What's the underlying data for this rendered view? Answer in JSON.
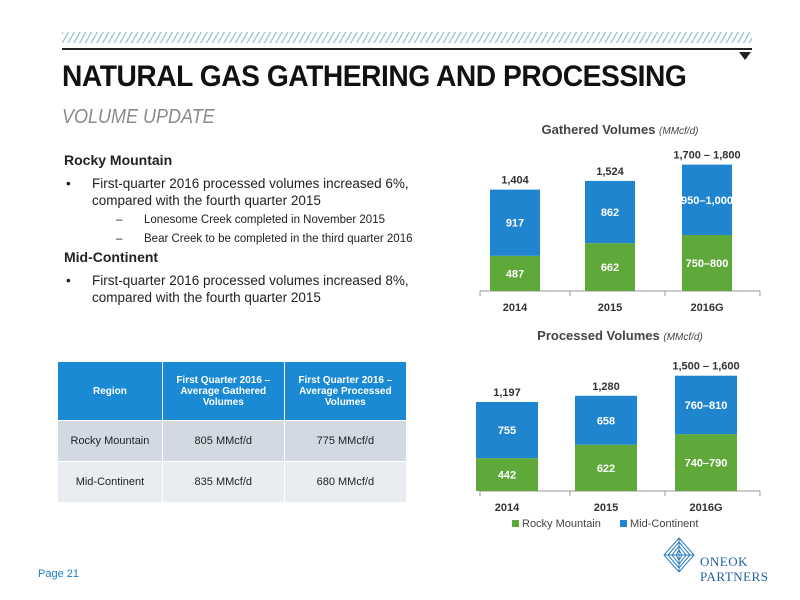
{
  "header": {
    "title": "NATURAL GAS GATHERING AND PROCESSING",
    "subtitle": "VOLUME UPDATE"
  },
  "content": {
    "rocky": {
      "heading": "Rocky Mountain",
      "bullet": "First-quarter 2016 processed volumes increased 6%, compared with the fourth quarter 2015",
      "subs": [
        "Lonesome Creek completed in November 2015",
        "Bear Creek to be completed in the third quarter 2016"
      ]
    },
    "mid": {
      "heading": "Mid-Continent",
      "bullet": "First-quarter 2016 processed volumes increased 8%, compared with the fourth quarter 2015"
    }
  },
  "table": {
    "headers": [
      "Region",
      "First Quarter 2016 – Average Gathered Volumes",
      "First Quarter 2016 – Average Processed Volumes"
    ],
    "rows": [
      [
        "Rocky Mountain",
        "805 MMcf/d",
        "775 MMcf/d"
      ],
      [
        "Mid-Continent",
        "835 MMcf/d",
        "680 MMcf/d"
      ]
    ]
  },
  "footer": {
    "page": "Page 21"
  },
  "logo": {
    "line1": "ONEOK",
    "line2": "PARTNERS"
  },
  "colors": {
    "rocky": "#5fa83a",
    "mid": "#1f85cf",
    "accent": "#1a8ad4"
  },
  "legend": [
    "Rocky Mountain",
    "Mid-Continent"
  ],
  "chart_data": [
    {
      "type": "bar",
      "stacked": true,
      "title": "Gathered Volumes",
      "title_unit": "(MMcf/d)",
      "categories": [
        "2014",
        "2015",
        "2016G"
      ],
      "series": [
        {
          "name": "Rocky Mountain",
          "values": [
            487,
            662,
            775
          ],
          "labels": [
            "487",
            "662",
            "750–800"
          ]
        },
        {
          "name": "Mid-Continent",
          "values": [
            917,
            862,
            975
          ],
          "labels": [
            "917",
            "862",
            "950–1,000"
          ]
        }
      ],
      "totals": [
        "1,404",
        "1,524",
        "1,700 – 1,800"
      ],
      "ylim": [
        0,
        1800
      ]
    },
    {
      "type": "bar",
      "stacked": true,
      "title": "Processed Volumes",
      "title_unit": "(MMcf/d)",
      "categories": [
        "2014",
        "2015",
        "2016G"
      ],
      "series": [
        {
          "name": "Rocky Mountain",
          "values": [
            442,
            622,
            765
          ],
          "labels": [
            "442",
            "622",
            "740–790"
          ]
        },
        {
          "name": "Mid-Continent",
          "values": [
            755,
            658,
            785
          ],
          "labels": [
            "755",
            "658",
            "760–810"
          ]
        }
      ],
      "totals": [
        "1,197",
        "1,280",
        "1,500 – 1,600"
      ],
      "ylim": [
        0,
        1600
      ]
    }
  ]
}
